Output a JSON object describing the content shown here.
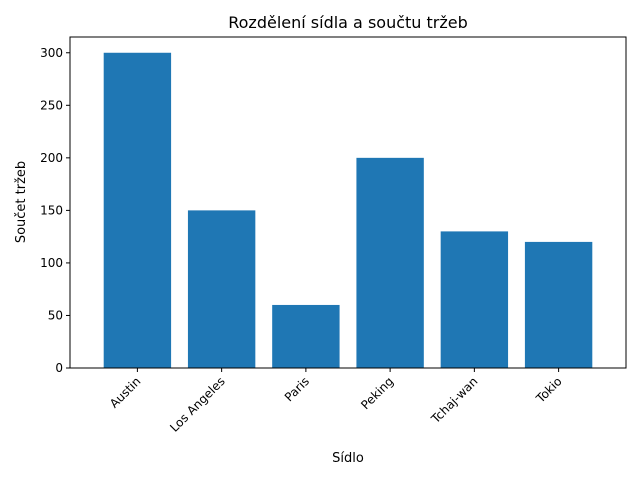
{
  "chart_data": {
    "type": "bar",
    "title": "Rozdělení sídla a součtu tržeb",
    "xlabel": "Sídlo",
    "ylabel": "Součet tržeb",
    "categories": [
      "Austin",
      "Los Angeles",
      "Paris",
      "Peking",
      "Tchaj-wan",
      "Tokio"
    ],
    "values": [
      300,
      150,
      60,
      200,
      130,
      120
    ],
    "ylim": [
      0,
      315
    ],
    "yticks": [
      0,
      50,
      100,
      150,
      200,
      250,
      300
    ],
    "grid": false,
    "bar_color": "#1f77b4"
  }
}
